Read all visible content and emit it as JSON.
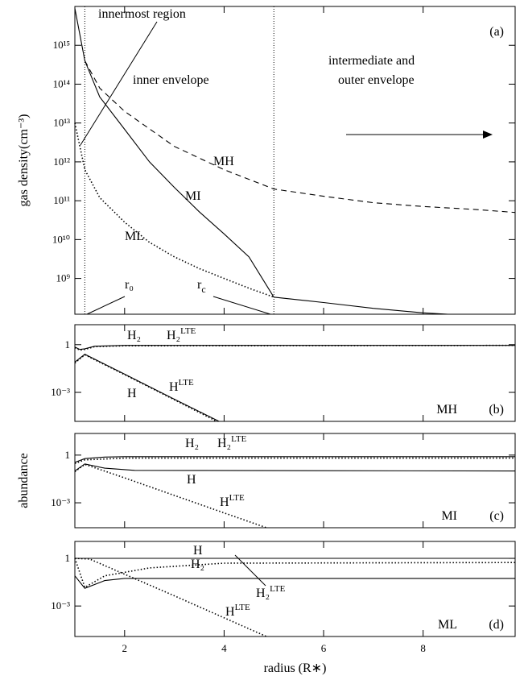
{
  "chart_data": [
    {
      "type": "line",
      "panel": "(a)",
      "ylabel": "gas density(cm⁻³)",
      "ylog": true,
      "xlim": [
        1,
        9.85
      ],
      "xticks": [
        2,
        4,
        6,
        8
      ],
      "ylim": [
        120000000.0,
        1e+16
      ],
      "yticks": [
        {
          "value": 1000000000.0,
          "label": "10⁹"
        },
        {
          "value": 10000000000.0,
          "label": "10¹⁰"
        },
        {
          "value": 100000000000.0,
          "label": "10¹¹"
        },
        {
          "value": 1000000000000.0,
          "label": "10¹²"
        },
        {
          "value": 10000000000000.0,
          "label": "10¹³"
        },
        {
          "value": 100000000000000.0,
          "label": "10¹⁴"
        },
        {
          "value": 1000000000000000.0,
          "label": "10¹⁵"
        }
      ],
      "vlines": [
        1.2,
        5
      ],
      "annotations": [
        "innermost region",
        "inner envelope",
        "intermediate and",
        "outer envelope",
        "r₀",
        {
          "text": "r",
          "sub": "c"
        }
      ],
      "series": [
        {
          "name": "MH",
          "color": "#000",
          "dash": "dashed",
          "x": [
            1.2,
            1.5,
            2,
            3,
            4,
            5,
            6,
            7,
            8,
            9,
            9.85
          ],
          "values": [
            400000000000000.0,
            79000000000000.0,
            20000000000000.0,
            2500000000000.0,
            630000000000.0,
            200000000000.0,
            130000000000.0,
            89000000000.0,
            71000000000.0,
            60000000000.0,
            50000000000.0
          ]
        },
        {
          "name": "MI",
          "color": "#000",
          "dash": "solid",
          "x": [
            1,
            1.2,
            1.5,
            2,
            2.5,
            3,
            3.5,
            4,
            4.5,
            5,
            6,
            7,
            8,
            8.5
          ],
          "values": [
            8900000000000000.0,
            400000000000000.0,
            47000000000000.0,
            6900000000000.0,
            1000000000000.0,
            220000000000.0,
            52000000000.0,
            14000000000.0,
            3600000000.0,
            330000000.0,
            240000000.0,
            170000000.0,
            130000000.0,
            120000000.0
          ]
        },
        {
          "name": "ML",
          "color": "#000",
          "dash": "dotted",
          "x": [
            1,
            1.2,
            1.5,
            2,
            2.5,
            3,
            3.5,
            4,
            4.5,
            5
          ],
          "values": [
            10000000000000.0,
            630000000000.0,
            120000000000.0,
            28000000000.0,
            8500000000.0,
            3600000000.0,
            1800000000.0,
            1000000000.0,
            560000000.0,
            330000000.0
          ]
        }
      ]
    },
    {
      "type": "line",
      "panel": "(b)",
      "model": "MH",
      "ylog": true,
      "xlim": [
        1,
        9.85
      ],
      "xticks": [
        2,
        4,
        6,
        8
      ],
      "ylim": [
        1.5e-05,
        18
      ],
      "yticks": [
        1,
        {
          "value": 0.001,
          "label": "10⁻³"
        }
      ],
      "series": [
        {
          "name": "H₂",
          "color": "#000",
          "dash": "solid",
          "x": [
            1,
            1.1,
            1.2,
            1.4,
            2,
            9.85
          ],
          "values": [
            0.7,
            0.5,
            0.55,
            0.8,
            0.9,
            0.9
          ]
        },
        {
          "name": "H₂",
          "sup": "LTE",
          "color": "#000",
          "dash": "dotted",
          "x": [
            1,
            1.1,
            1.2,
            1.4,
            2,
            9.85
          ],
          "values": [
            0.65,
            0.45,
            0.5,
            0.75,
            0.85,
            0.9
          ]
        },
        {
          "name": "H",
          "color": "#000",
          "dash": "solid",
          "x": [
            1,
            1.2,
            2,
            3,
            3.9
          ],
          "values": [
            0.08,
            0.25,
            0.014,
            0.00037,
            1.5e-05
          ]
        },
        {
          "name": "H",
          "sup": "LTE",
          "color": "#000",
          "dash": "dotted",
          "x": [
            1,
            1.2,
            2,
            3,
            3.85
          ],
          "values": [
            0.07,
            0.23,
            0.013,
            0.00034,
            1.5e-05
          ]
        }
      ]
    },
    {
      "type": "line",
      "panel": "(c)",
      "model": "MI",
      "ylabel": "abundance",
      "ylog": true,
      "xlim": [
        1,
        9.85
      ],
      "xticks": [
        2,
        4,
        6,
        8
      ],
      "ylim": [
        2.7e-05,
        23
      ],
      "yticks": [
        1,
        {
          "value": 0.001,
          "label": "10⁻³"
        }
      ],
      "series": [
        {
          "name": "H₂",
          "color": "#000",
          "dash": "solid",
          "x": [
            1,
            1.2,
            1.6,
            2,
            9.85
          ],
          "values": [
            0.35,
            0.6,
            0.75,
            0.8,
            0.8
          ]
        },
        {
          "name": "H₂",
          "sup": "LTE",
          "color": "#000",
          "dash": "dotted",
          "x": [
            1,
            1.2,
            2,
            9.85
          ],
          "values": [
            0.3,
            0.5,
            0.65,
            0.65
          ]
        },
        {
          "name": "H",
          "color": "#000",
          "dash": "solid",
          "x": [
            1,
            1.2,
            1.6,
            2.2,
            9.85
          ],
          "values": [
            0.1,
            0.28,
            0.15,
            0.11,
            0.1
          ]
        },
        {
          "name": "H",
          "sup": "LTE",
          "color": "#000",
          "dash": "dotted",
          "x": [
            1,
            1.2,
            2,
            3,
            4,
            4.85
          ],
          "values": [
            0.09,
            0.26,
            0.037,
            0.0029,
            0.00023,
            2.7e-05
          ]
        }
      ]
    },
    {
      "type": "line",
      "panel": "(d)",
      "model": "ML",
      "xlabel": "radius (R∗)",
      "ylog": true,
      "xlim": [
        1,
        9.85
      ],
      "xticks": [
        2,
        4,
        6,
        8
      ],
      "ylim": [
        1.2e-05,
        11.7
      ],
      "yticks": [
        1,
        {
          "value": 0.001,
          "label": "10⁻³"
        }
      ],
      "series": [
        {
          "name": "H",
          "color": "#000",
          "dash": "solid",
          "x": [
            1,
            9.85
          ],
          "values": [
            1,
            1
          ]
        },
        {
          "name": "H₂",
          "color": "#000",
          "dash": "solid",
          "x": [
            1,
            1.2,
            1.6,
            2,
            9.85
          ],
          "values": [
            0.08,
            0.013,
            0.04,
            0.055,
            0.055
          ]
        },
        {
          "name": "H₂",
          "sup": "LTE",
          "color": "#000",
          "dash": "dotted",
          "x": [
            1,
            1.2,
            1.6,
            2.5,
            4,
            9.85
          ],
          "values": [
            1,
            0.015,
            0.08,
            0.25,
            0.5,
            0.55
          ]
        },
        {
          "name": "H",
          "sup": "LTE",
          "color": "#000",
          "dash": "dotted",
          "x": [
            1,
            1.3,
            2,
            3,
            4,
            4.85
          ],
          "values": [
            1,
            0.9,
            0.1,
            0.0044,
            0.00018,
            1.2e-05
          ]
        }
      ]
    }
  ]
}
